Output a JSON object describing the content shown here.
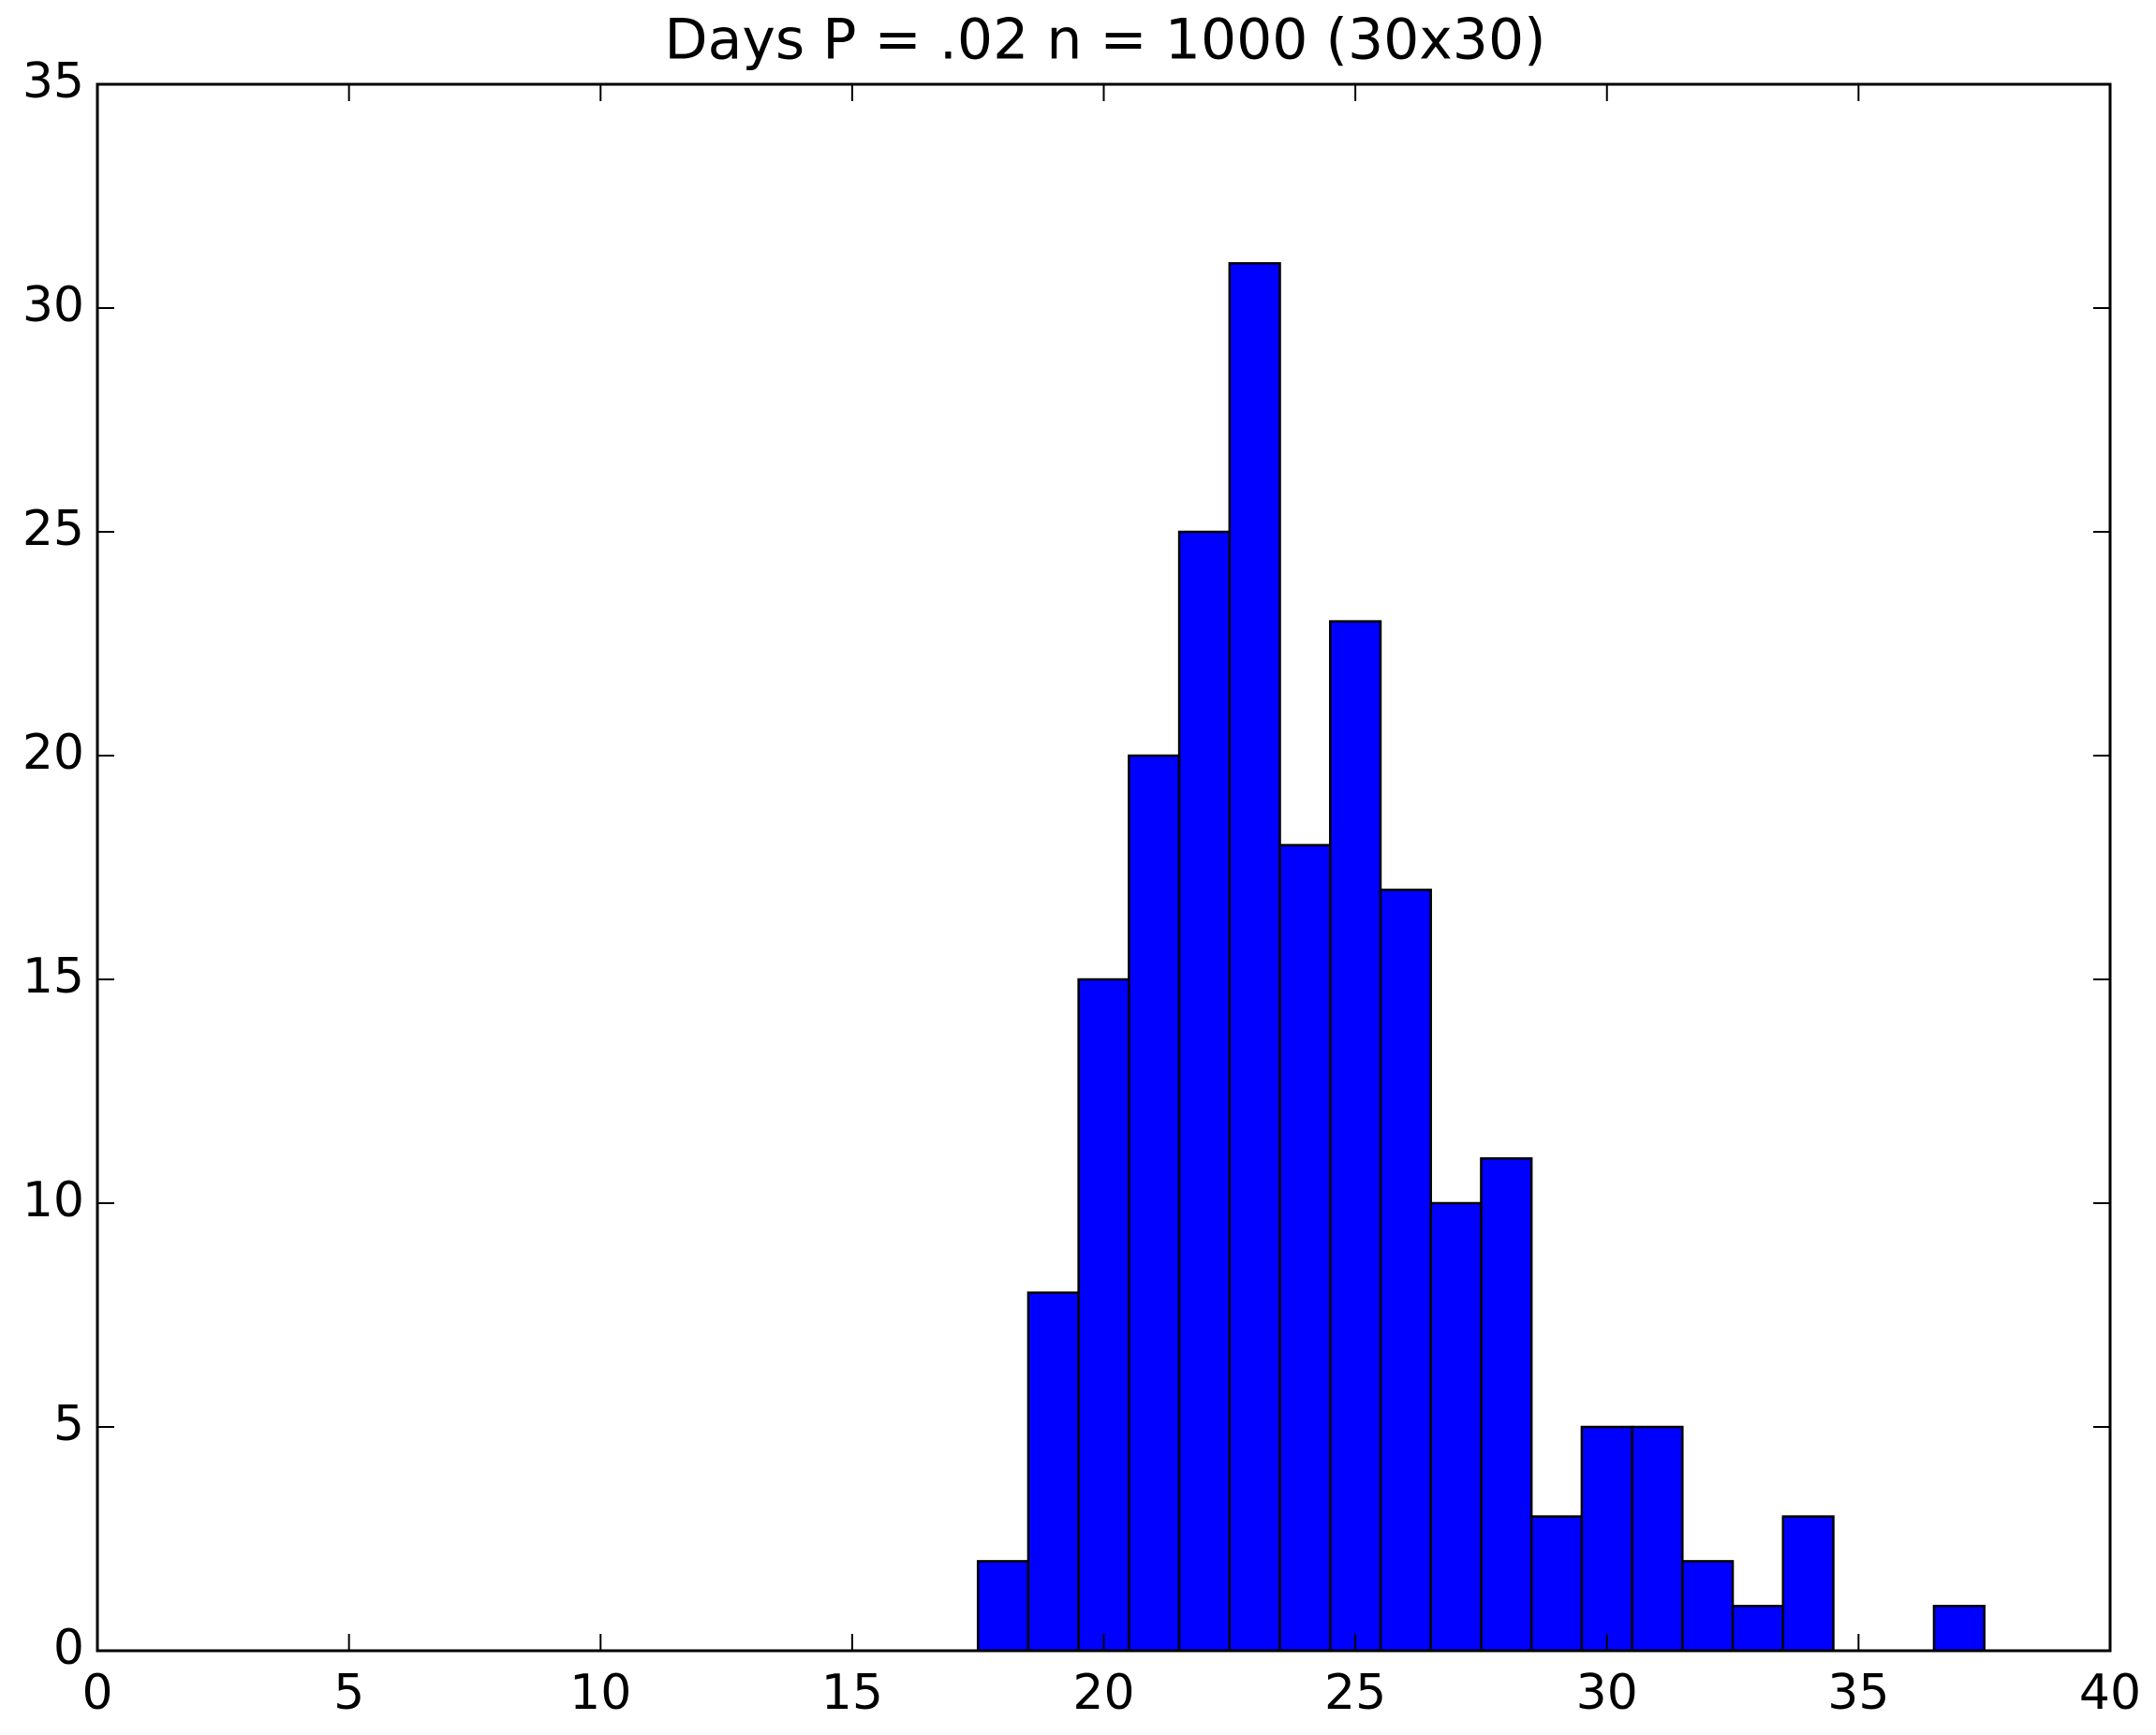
{
  "chart_data": {
    "type": "histogram",
    "title": "Days P = .02 n = 1000 (30x30)",
    "bins": [
      0.5,
      1.5,
      2.5,
      3.5,
      4.5,
      5.5,
      6.5,
      7.5,
      8.5,
      9.5,
      10.5,
      11.5,
      12.5,
      13.5,
      14.5,
      15.5,
      16.5,
      17.5,
      18.5,
      19.5,
      20.5,
      21.5,
      22.5,
      23.5,
      24.5,
      25.5,
      26.5,
      27.5,
      28.5,
      29.5,
      30.5,
      31.5,
      32.5,
      33.5,
      34.5,
      35.5,
      36.5,
      37.5
    ],
    "values": [
      0,
      0,
      0,
      0,
      0,
      0,
      0,
      0,
      0,
      0,
      0,
      0,
      0,
      0,
      0,
      0,
      0,
      2,
      8,
      15,
      20,
      25,
      31,
      18,
      23,
      17,
      10,
      11,
      3,
      5,
      5,
      2,
      1,
      3,
      0,
      0,
      1
    ],
    "color": "#0000ff",
    "xlim": [
      0,
      40
    ],
    "xticks": [
      0,
      5,
      10,
      15,
      20,
      25,
      30,
      35,
      40
    ],
    "ylim": [
      0,
      35
    ],
    "yticks": [
      0,
      5,
      10,
      15,
      20,
      25,
      30,
      35
    ]
  }
}
